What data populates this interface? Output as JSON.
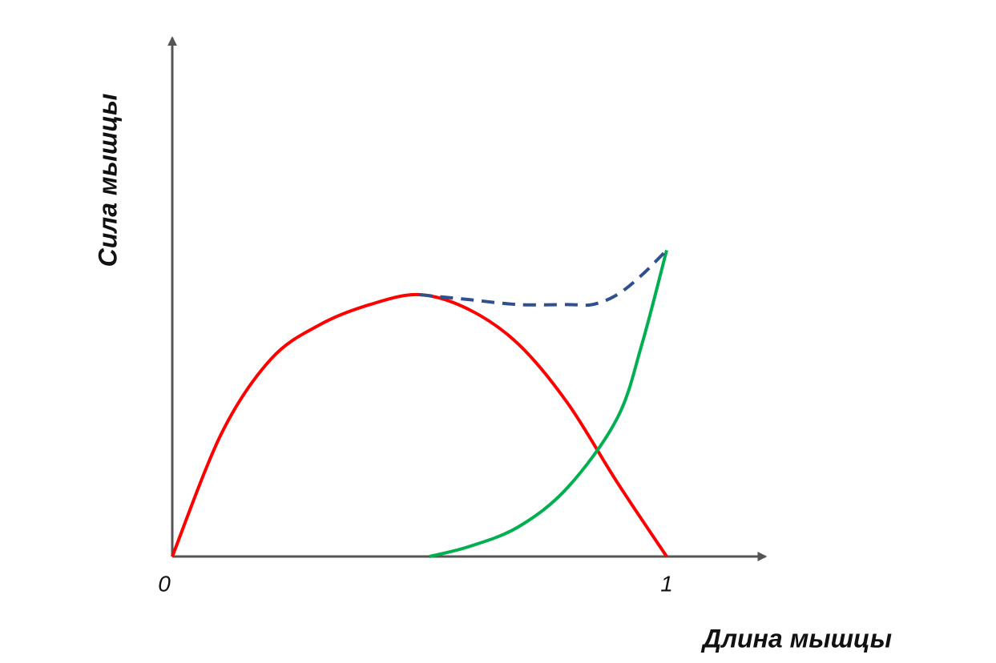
{
  "chart_data": {
    "type": "line",
    "xlabel": "Длина мышцы",
    "ylabel": "Сила мышцы",
    "xlim": [
      0,
      1.2
    ],
    "ylim": [
      0,
      1.05
    ],
    "xticks": [
      0,
      1
    ],
    "series": [
      {
        "color": "#ff0000",
        "dashed": false,
        "x": [
          0,
          0.1,
          0.2,
          0.3,
          0.4,
          0.5,
          0.6,
          0.7,
          0.8,
          0.9,
          1.0
        ],
        "values": [
          0,
          0.25,
          0.4,
          0.47,
          0.51,
          0.53,
          0.5,
          0.43,
          0.31,
          0.15,
          0
        ]
      },
      {
        "color": "#00b050",
        "dashed": false,
        "x": [
          0.52,
          0.6,
          0.7,
          0.8,
          0.9,
          0.95,
          1.0
        ],
        "values": [
          0,
          0.02,
          0.06,
          0.14,
          0.28,
          0.43,
          0.62
        ]
      },
      {
        "color": "#2f4f8f",
        "dashed": true,
        "x": [
          0.5,
          0.6,
          0.7,
          0.8,
          0.85,
          0.9,
          0.95,
          1.0
        ],
        "values": [
          0.53,
          0.52,
          0.51,
          0.51,
          0.51,
          0.53,
          0.57,
          0.62
        ]
      }
    ]
  }
}
